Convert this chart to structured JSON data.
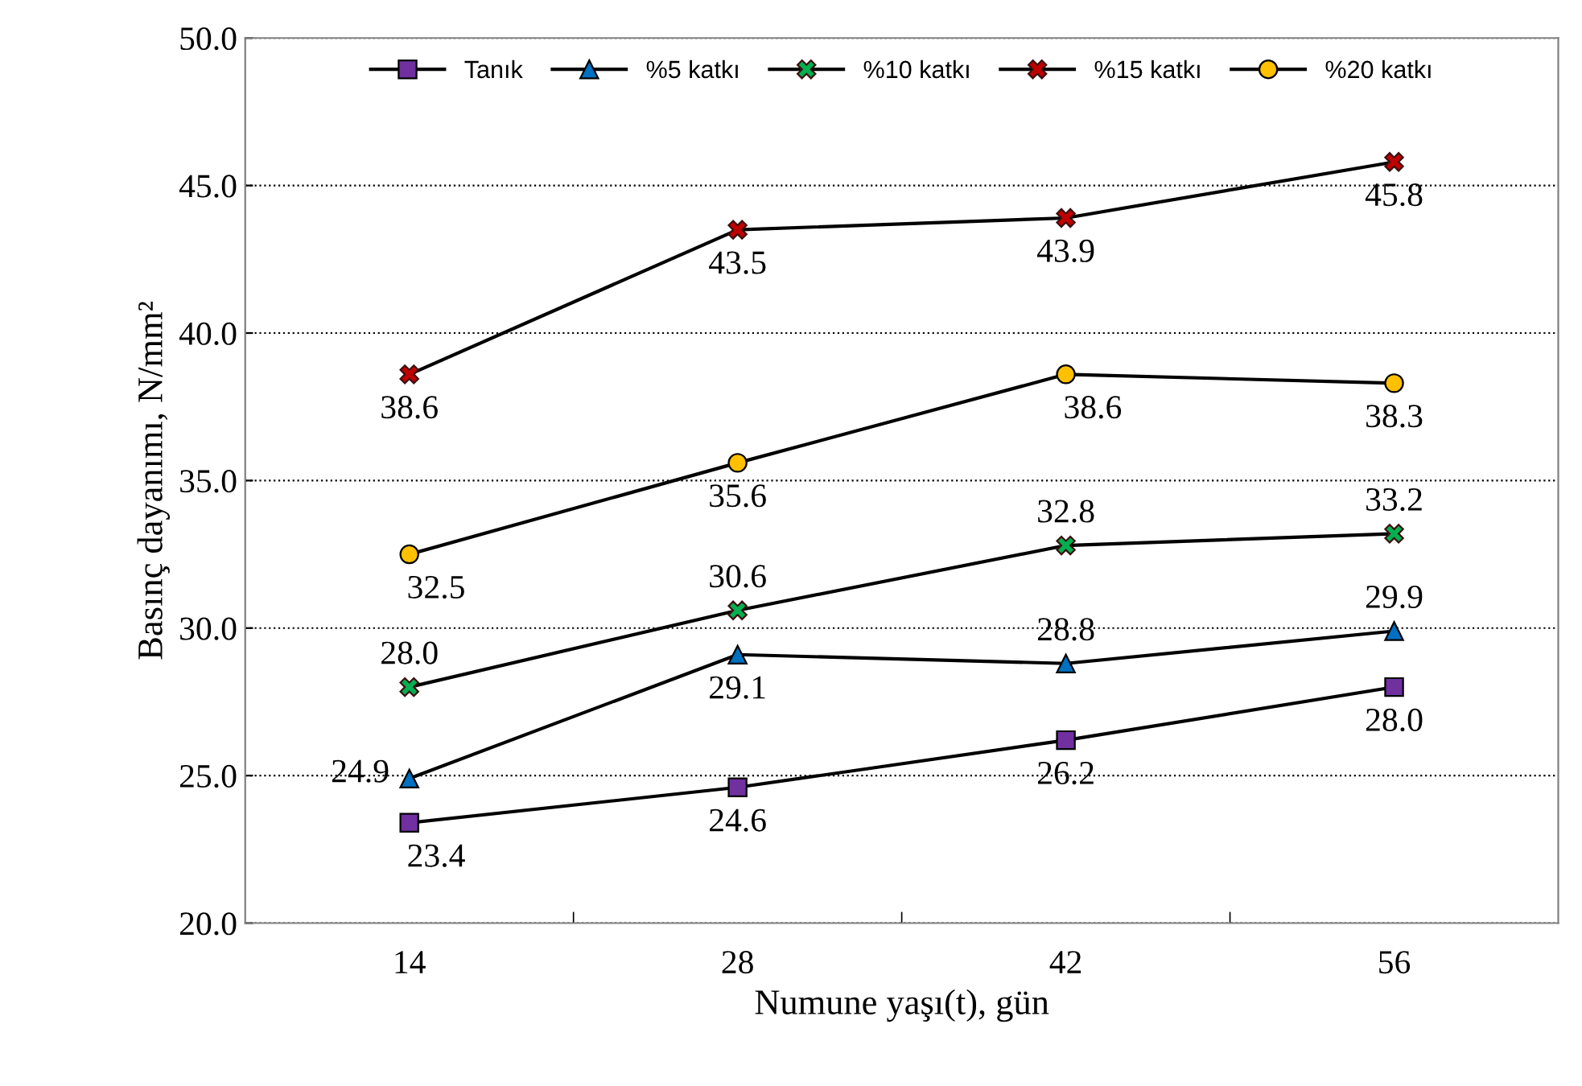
{
  "chart_data": {
    "type": "line",
    "xlabel": "Numune yaşı(t), gün",
    "ylabel": "Basınç dayanımı, N/mm²",
    "categories": [
      "14",
      "28",
      "42",
      "56"
    ],
    "ylim": [
      20,
      50
    ],
    "yticks": [
      {
        "value": 20,
        "label": "20.0"
      },
      {
        "value": 25,
        "label": "25.0"
      },
      {
        "value": 30,
        "label": "30.0"
      },
      {
        "value": 35,
        "label": "35.0"
      },
      {
        "value": 40,
        "label": "40.0"
      },
      {
        "value": 45,
        "label": "45.0"
      },
      {
        "value": 50,
        "label": "50.0"
      }
    ],
    "grid": "y",
    "legend": "top",
    "line_style": "solid",
    "series": [
      {
        "name": "Tanık",
        "color": "#7030a0",
        "marker": "square",
        "values": [
          23.4,
          24.6,
          26.2,
          28.0
        ],
        "value_labels": [
          "23.4",
          "24.6",
          "26.2",
          "28.0"
        ]
      },
      {
        "name": "%5 katkı",
        "color": "#0070c0",
        "marker": "triangle",
        "values": [
          24.9,
          29.1,
          28.8,
          29.9
        ],
        "value_labels": [
          "24.9",
          "29.1",
          "28.8",
          "29.9"
        ]
      },
      {
        "name": "%10 katkı",
        "color": "#00b050",
        "marker": "cross",
        "values": [
          28.0,
          30.6,
          32.8,
          33.2
        ],
        "value_labels": [
          "28.0",
          "30.6",
          "32.8",
          "33.2"
        ]
      },
      {
        "name": "%15 katkı",
        "color": "#c00000",
        "marker": "cross",
        "values": [
          38.6,
          43.5,
          43.9,
          45.8
        ],
        "value_labels": [
          "38.6",
          "43.5",
          "43.9",
          "45.8"
        ]
      },
      {
        "name": "%20 katkı",
        "color": "#ffc000",
        "marker": "circle",
        "values": [
          32.5,
          35.6,
          38.6,
          38.3
        ],
        "value_labels": [
          "32.5",
          "35.6",
          "38.6",
          "38.3"
        ]
      }
    ]
  }
}
